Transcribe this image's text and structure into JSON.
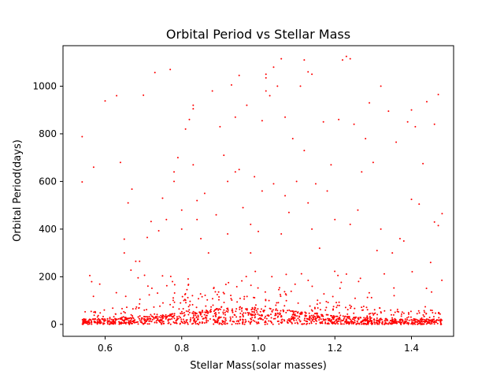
{
  "chart_data": {
    "type": "scatter",
    "title": "Orbital Period vs Stellar Mass",
    "xlabel": "Stellar Mass(solar masses)",
    "ylabel": "Orbital Period(days)",
    "xlim": [
      0.49,
      1.51
    ],
    "ylim": [
      -50,
      1170
    ],
    "xticks": [
      0.6,
      0.8,
      1.0,
      1.2,
      1.4
    ],
    "xtick_labels": [
      "0.6",
      "0.8",
      "1.0",
      "1.2",
      "1.4"
    ],
    "yticks": [
      0,
      200,
      400,
      600,
      800,
      1000
    ],
    "ytick_labels": [
      "0",
      "200",
      "400",
      "600",
      "800",
      "1000"
    ],
    "grid": false,
    "marker_color": "#ff0000",
    "series": [
      {
        "points": [
          [
            0.54,
            788
          ],
          [
            0.54,
            598
          ],
          [
            0.56,
            205
          ],
          [
            0.57,
            660
          ],
          [
            0.6,
            938
          ],
          [
            0.63,
            960
          ],
          [
            0.64,
            680
          ],
          [
            0.65,
            358
          ],
          [
            0.65,
            300
          ],
          [
            0.66,
            510
          ],
          [
            0.67,
            568
          ],
          [
            0.68,
            265
          ],
          [
            0.69,
            265
          ],
          [
            0.7,
            962
          ],
          [
            0.71,
            365
          ],
          [
            0.72,
            432
          ],
          [
            0.73,
            1057
          ],
          [
            0.74,
            393
          ],
          [
            0.75,
            530
          ],
          [
            0.76,
            440
          ],
          [
            0.77,
            1070
          ],
          [
            0.78,
            640
          ],
          [
            0.78,
            600
          ],
          [
            0.79,
            700
          ],
          [
            0.8,
            480
          ],
          [
            0.8,
            400
          ],
          [
            0.81,
            820
          ],
          [
            0.82,
            860
          ],
          [
            0.83,
            920
          ],
          [
            0.83,
            905
          ],
          [
            0.83,
            670
          ],
          [
            0.84,
            520
          ],
          [
            0.84,
            440
          ],
          [
            0.85,
            360
          ],
          [
            0.86,
            550
          ],
          [
            0.87,
            300
          ],
          [
            0.88,
            980
          ],
          [
            0.89,
            460
          ],
          [
            0.9,
            830
          ],
          [
            0.91,
            710
          ],
          [
            0.92,
            600
          ],
          [
            0.92,
            380
          ],
          [
            0.93,
            1005
          ],
          [
            0.94,
            870
          ],
          [
            0.94,
            640
          ],
          [
            0.95,
            1045
          ],
          [
            0.95,
            650
          ],
          [
            0.96,
            490
          ],
          [
            0.97,
            920
          ],
          [
            0.98,
            420
          ],
          [
            0.98,
            300
          ],
          [
            0.99,
            620
          ],
          [
            1.0,
            390
          ],
          [
            1.01,
            855
          ],
          [
            1.01,
            560
          ],
          [
            1.02,
            1050
          ],
          [
            1.02,
            1035
          ],
          [
            1.02,
            980
          ],
          [
            1.03,
            960
          ],
          [
            1.04,
            1080
          ],
          [
            1.04,
            590
          ],
          [
            1.05,
            1000
          ],
          [
            1.06,
            1115
          ],
          [
            1.06,
            380
          ],
          [
            1.07,
            870
          ],
          [
            1.07,
            540
          ],
          [
            1.08,
            470
          ],
          [
            1.09,
            780
          ],
          [
            1.1,
            600
          ],
          [
            1.11,
            1000
          ],
          [
            1.12,
            1110
          ],
          [
            1.12,
            730
          ],
          [
            1.13,
            1060
          ],
          [
            1.13,
            510
          ],
          [
            1.14,
            1050
          ],
          [
            1.14,
            400
          ],
          [
            1.15,
            590
          ],
          [
            1.16,
            320
          ],
          [
            1.17,
            850
          ],
          [
            1.18,
            560
          ],
          [
            1.19,
            670
          ],
          [
            1.2,
            440
          ],
          [
            1.21,
            860
          ],
          [
            1.22,
            1110
          ],
          [
            1.23,
            1125
          ],
          [
            1.24,
            1115
          ],
          [
            1.24,
            420
          ],
          [
            1.25,
            840
          ],
          [
            1.26,
            480
          ],
          [
            1.27,
            640
          ],
          [
            1.28,
            780
          ],
          [
            1.29,
            930
          ],
          [
            1.3,
            680
          ],
          [
            1.31,
            310
          ],
          [
            1.32,
            1000
          ],
          [
            1.32,
            400
          ],
          [
            1.34,
            895
          ],
          [
            1.35,
            300
          ],
          [
            1.36,
            765
          ],
          [
            1.37,
            360
          ],
          [
            1.38,
            350
          ],
          [
            1.39,
            850
          ],
          [
            1.4,
            900
          ],
          [
            1.4,
            525
          ],
          [
            1.41,
            830
          ],
          [
            1.42,
            505
          ],
          [
            1.43,
            675
          ],
          [
            1.44,
            935
          ],
          [
            1.45,
            260
          ],
          [
            1.46,
            840
          ],
          [
            1.46,
            430
          ],
          [
            1.47,
            965
          ],
          [
            1.47,
            415
          ],
          [
            1.48,
            465
          ]
        ],
        "dense_band_y_range": [
          0,
          230
        ]
      }
    ]
  }
}
